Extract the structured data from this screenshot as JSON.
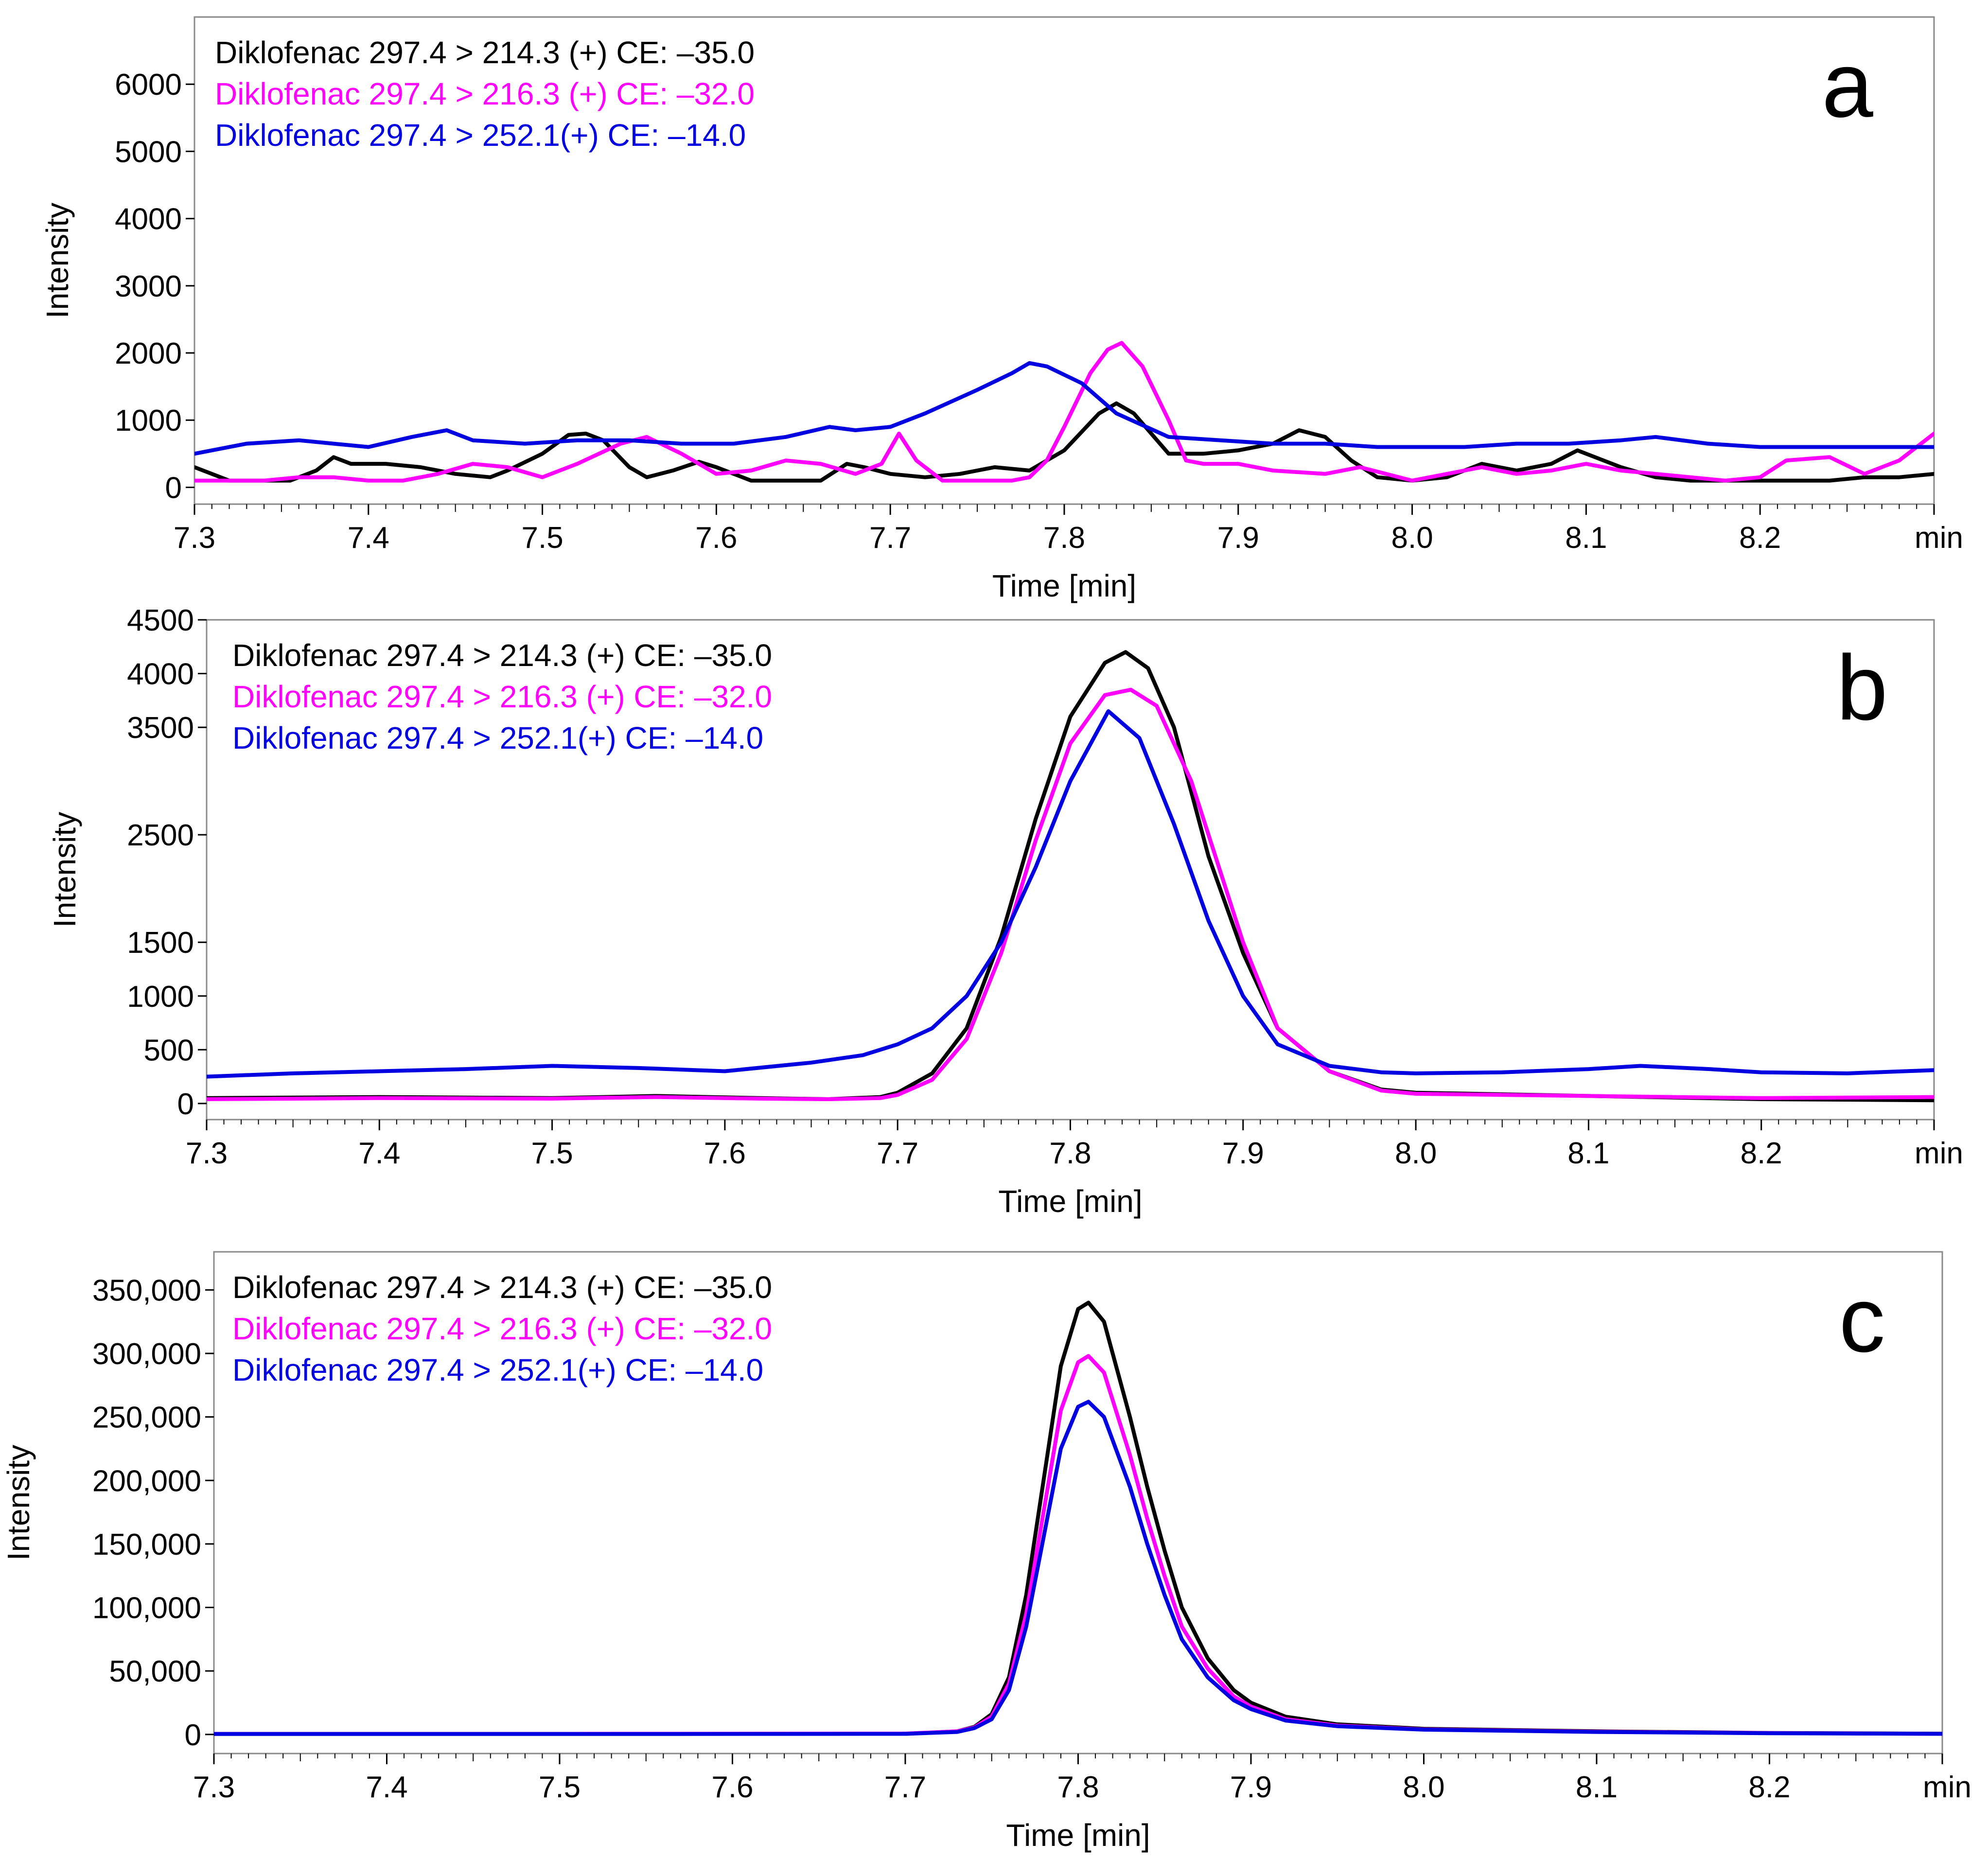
{
  "figure": {
    "background": "#ffffff"
  },
  "series_colors": {
    "black": "#000000",
    "magenta": "#ff00ff",
    "blue": "#0000e0"
  },
  "chart_data": [
    {
      "panel_label": "a",
      "type": "line",
      "xlabel": "Time [min]",
      "ylabel": "Intensity",
      "x_unit_label": "min",
      "xlim": [
        7.3,
        8.3
      ],
      "ylim": [
        -250,
        7000
      ],
      "xticks": [
        7.3,
        7.4,
        7.5,
        7.6,
        7.7,
        7.8,
        7.9,
        8.0,
        8.1,
        8.2
      ],
      "xtick_labels": [
        "7.3",
        "7.4",
        "7.5",
        "7.6",
        "7.7",
        "7.8",
        "7.9",
        "8.0",
        "8.1",
        "8.2"
      ],
      "yticks": [
        0,
        1000,
        2000,
        3000,
        4000,
        5000,
        6000
      ],
      "ytick_labels": [
        "0",
        "1000",
        "2000",
        "3000",
        "4000",
        "5000",
        "6000"
      ],
      "legend": [
        {
          "text": "Diklofenac 297.4 > 214.3 (+) CE: –35.0",
          "color": "#000000"
        },
        {
          "text": "Diklofenac 297.4 > 216.3 (+) CE: –32.0",
          "color": "#ff00ff"
        },
        {
          "text": "Diklofenac 297.4 > 252.1(+) CE: –14.0",
          "color": "#0000e0"
        }
      ],
      "series": [
        {
          "name": "Diklofenac 297.4 > 214.3 (+) CE: –35.0",
          "color": "#000000",
          "x": [
            7.3,
            7.32,
            7.34,
            7.355,
            7.37,
            7.38,
            7.39,
            7.41,
            7.43,
            7.45,
            7.47,
            7.48,
            7.5,
            7.515,
            7.525,
            7.535,
            7.55,
            7.56,
            7.575,
            7.59,
            7.6,
            7.62,
            7.64,
            7.66,
            7.675,
            7.685,
            7.7,
            7.72,
            7.74,
            7.76,
            7.78,
            7.8,
            7.82,
            7.83,
            7.84,
            7.86,
            7.88,
            7.9,
            7.92,
            7.935,
            7.95,
            7.965,
            7.98,
            8.0,
            8.02,
            8.04,
            8.06,
            8.08,
            8.095,
            8.12,
            8.14,
            8.16,
            8.18,
            8.2,
            8.22,
            8.24,
            8.26,
            8.28,
            8.3
          ],
          "y": [
            300,
            100,
            100,
            100,
            250,
            450,
            350,
            350,
            300,
            200,
            150,
            250,
            500,
            780,
            800,
            700,
            300,
            150,
            250,
            380,
            300,
            100,
            100,
            100,
            350,
            300,
            200,
            150,
            200,
            300,
            250,
            550,
            1100,
            1250,
            1100,
            500,
            500,
            550,
            650,
            850,
            750,
            400,
            150,
            100,
            150,
            350,
            250,
            350,
            550,
            300,
            150,
            100,
            100,
            100,
            100,
            100,
            150,
            150,
            200
          ]
        },
        {
          "name": "Diklofenac 297.4 > 216.3 (+) CE: –32.0",
          "color": "#ff00ff",
          "x": [
            7.3,
            7.32,
            7.34,
            7.36,
            7.38,
            7.4,
            7.42,
            7.44,
            7.46,
            7.48,
            7.5,
            7.52,
            7.545,
            7.56,
            7.58,
            7.6,
            7.62,
            7.64,
            7.66,
            7.68,
            7.695,
            7.705,
            7.715,
            7.73,
            7.75,
            7.77,
            7.78,
            7.79,
            7.8,
            7.815,
            7.825,
            7.833,
            7.845,
            7.86,
            7.87,
            7.88,
            7.9,
            7.92,
            7.95,
            7.97,
            7.985,
            8.0,
            8.02,
            8.04,
            8.06,
            8.08,
            8.1,
            8.12,
            8.14,
            8.16,
            8.18,
            8.2,
            8.215,
            8.24,
            8.26,
            8.28,
            8.3
          ],
          "y": [
            100,
            100,
            100,
            150,
            150,
            100,
            100,
            200,
            350,
            300,
            150,
            350,
            650,
            750,
            500,
            200,
            250,
            400,
            350,
            200,
            350,
            800,
            400,
            100,
            100,
            100,
            150,
            400,
            900,
            1700,
            2050,
            2150,
            1800,
            1000,
            400,
            350,
            350,
            250,
            200,
            300,
            200,
            100,
            200,
            300,
            200,
            250,
            350,
            250,
            200,
            150,
            100,
            150,
            400,
            450,
            200,
            400,
            800
          ]
        },
        {
          "name": "Diklofenac 297.4 > 252.1(+) CE: –14.0",
          "color": "#0000e0",
          "x": [
            7.3,
            7.33,
            7.36,
            7.38,
            7.4,
            7.425,
            7.445,
            7.46,
            7.49,
            7.52,
            7.55,
            7.58,
            7.61,
            7.64,
            7.665,
            7.68,
            7.7,
            7.72,
            7.75,
            7.77,
            7.78,
            7.79,
            7.81,
            7.83,
            7.86,
            7.89,
            7.92,
            7.95,
            7.98,
            8.0,
            8.03,
            8.06,
            8.09,
            8.12,
            8.14,
            8.17,
            8.2,
            8.23,
            8.26,
            8.3
          ],
          "y": [
            500,
            650,
            700,
            650,
            600,
            750,
            850,
            700,
            650,
            700,
            700,
            650,
            650,
            750,
            900,
            850,
            900,
            1100,
            1450,
            1700,
            1850,
            1800,
            1550,
            1100,
            750,
            700,
            650,
            650,
            600,
            600,
            600,
            650,
            650,
            700,
            750,
            650,
            600,
            600,
            600,
            600
          ]
        }
      ]
    },
    {
      "panel_label": "b",
      "type": "line",
      "xlabel": "Time [min]",
      "ylabel": "Intensity",
      "x_unit_label": "min",
      "xlim": [
        7.3,
        8.3
      ],
      "ylim": [
        -150,
        4500
      ],
      "xticks": [
        7.3,
        7.4,
        7.5,
        7.6,
        7.7,
        7.8,
        7.9,
        8.0,
        8.1,
        8.2
      ],
      "xtick_labels": [
        "7.3",
        "7.4",
        "7.5",
        "7.6",
        "7.7",
        "7.8",
        "7.9",
        "8.0",
        "8.1",
        "8.2"
      ],
      "yticks": [
        0,
        500,
        1000,
        1500,
        2500,
        3500,
        4000,
        4500
      ],
      "ytick_labels": [
        "0",
        "500",
        "1000",
        "1500",
        "2500",
        "3500",
        "4000",
        "4500"
      ],
      "legend": [
        {
          "text": "Diklofenac 297.4 > 214.3 (+) CE: –35.0",
          "color": "#000000"
        },
        {
          "text": "Diklofenac 297.4 > 216.3 (+) CE: –32.0",
          "color": "#ff00ff"
        },
        {
          "text": "Diklofenac 297.4 > 252.1(+) CE: –14.0",
          "color": "#0000e0"
        }
      ],
      "series": [
        {
          "name": "Diklofenac 297.4 > 214.3 (+) CE: –35.0",
          "color": "#000000",
          "x": [
            7.3,
            7.4,
            7.5,
            7.56,
            7.62,
            7.66,
            7.69,
            7.7,
            7.72,
            7.74,
            7.76,
            7.78,
            7.8,
            7.82,
            7.832,
            7.845,
            7.86,
            7.88,
            7.9,
            7.92,
            7.95,
            7.98,
            8.0,
            8.1,
            8.2,
            8.3
          ],
          "y": [
            50,
            60,
            50,
            70,
            50,
            40,
            60,
            100,
            280,
            700,
            1550,
            2650,
            3600,
            4100,
            4200,
            4050,
            3500,
            2300,
            1400,
            700,
            300,
            130,
            100,
            70,
            40,
            30
          ]
        },
        {
          "name": "Diklofenac 297.4 > 216.3 (+) CE: –32.0",
          "color": "#ff00ff",
          "x": [
            7.3,
            7.4,
            7.5,
            7.56,
            7.62,
            7.66,
            7.69,
            7.7,
            7.72,
            7.74,
            7.76,
            7.78,
            7.8,
            7.82,
            7.835,
            7.85,
            7.87,
            7.9,
            7.92,
            7.95,
            7.98,
            8.0,
            8.1,
            8.2,
            8.3
          ],
          "y": [
            40,
            50,
            45,
            60,
            45,
            40,
            50,
            80,
            220,
            600,
            1400,
            2450,
            3350,
            3800,
            3850,
            3700,
            3000,
            1500,
            700,
            300,
            120,
            90,
            70,
            50,
            60
          ]
        },
        {
          "name": "Diklofenac 297.4 > 252.1(+) CE: –14.0",
          "color": "#0000e0",
          "x": [
            7.3,
            7.35,
            7.4,
            7.45,
            7.5,
            7.55,
            7.6,
            7.65,
            7.68,
            7.7,
            7.72,
            7.74,
            7.76,
            7.78,
            7.8,
            7.822,
            7.84,
            7.86,
            7.88,
            7.9,
            7.92,
            7.95,
            7.98,
            8.0,
            8.05,
            8.1,
            8.13,
            8.17,
            8.2,
            8.25,
            8.3
          ],
          "y": [
            250,
            280,
            300,
            320,
            350,
            330,
            300,
            380,
            450,
            550,
            700,
            1000,
            1500,
            2200,
            3000,
            3650,
            3400,
            2600,
            1700,
            1000,
            550,
            350,
            290,
            280,
            290,
            320,
            350,
            320,
            290,
            280,
            310
          ]
        }
      ]
    },
    {
      "panel_label": "c",
      "type": "line",
      "xlabel": "Time [min]",
      "ylabel": "Intensity",
      "x_unit_label": "min",
      "xlim": [
        7.3,
        8.3
      ],
      "ylim": [
        -15000,
        380000
      ],
      "xticks": [
        7.3,
        7.4,
        7.5,
        7.6,
        7.7,
        7.8,
        7.9,
        8.0,
        8.1,
        8.2
      ],
      "xtick_labels": [
        "7.3",
        "7.4",
        "7.5",
        "7.6",
        "7.7",
        "7.8",
        "7.9",
        "8.0",
        "8.1",
        "8.2"
      ],
      "yticks": [
        0,
        50000,
        100000,
        150000,
        200000,
        250000,
        300000,
        350000
      ],
      "ytick_labels": [
        "0",
        "50,000",
        "100,000",
        "150,000",
        "200,000",
        "250,000",
        "300,000",
        "350,000"
      ],
      "legend": [
        {
          "text": "Diklofenac 297.4 > 214.3 (+) CE: –35.0",
          "color": "#000000"
        },
        {
          "text": "Diklofenac 297.4 > 216.3 (+) CE: –32.0",
          "color": "#ff00ff"
        },
        {
          "text": "Diklofenac 297.4 > 252.1(+) CE: –14.0",
          "color": "#0000e0"
        }
      ],
      "series": [
        {
          "name": "Diklofenac 297.4 > 214.3 (+) CE: –35.0",
          "color": "#000000",
          "x": [
            7.3,
            7.5,
            7.7,
            7.73,
            7.74,
            7.75,
            7.76,
            7.77,
            7.78,
            7.79,
            7.8,
            7.806,
            7.815,
            7.83,
            7.84,
            7.85,
            7.86,
            7.875,
            7.89,
            7.9,
            7.92,
            7.95,
            8.0,
            8.1,
            8.2,
            8.3
          ],
          "y": [
            500,
            500,
            500,
            2500,
            6000,
            16000,
            45000,
            110000,
            200000,
            290000,
            335000,
            340000,
            325000,
            250000,
            195000,
            145000,
            100000,
            60000,
            35000,
            25000,
            14000,
            8000,
            4500,
            2500,
            1200,
            600
          ]
        },
        {
          "name": "Diklofenac 297.4 > 216.3 (+) CE: –32.0",
          "color": "#ff00ff",
          "x": [
            7.3,
            7.5,
            7.7,
            7.73,
            7.74,
            7.75,
            7.76,
            7.77,
            7.78,
            7.79,
            7.8,
            7.806,
            7.815,
            7.83,
            7.84,
            7.85,
            7.86,
            7.875,
            7.89,
            7.9,
            7.92,
            7.95,
            8.0,
            8.1,
            8.2,
            8.3
          ],
          "y": [
            500,
            500,
            700,
            2500,
            5500,
            14000,
            40000,
            95000,
            175000,
            255000,
            293000,
            298000,
            285000,
            220000,
            170000,
            125000,
            85000,
            52000,
            30000,
            22000,
            12000,
            7000,
            4000,
            2200,
            1100,
            500
          ]
        },
        {
          "name": "Diklofenac 297.4 > 252.1(+) CE: –14.0",
          "color": "#0000e0",
          "x": [
            7.3,
            7.5,
            7.7,
            7.73,
            7.74,
            7.75,
            7.76,
            7.77,
            7.78,
            7.79,
            7.8,
            7.806,
            7.815,
            7.83,
            7.84,
            7.85,
            7.86,
            7.875,
            7.89,
            7.9,
            7.92,
            7.95,
            8.0,
            8.1,
            8.2,
            8.3
          ],
          "y": [
            400,
            400,
            500,
            2000,
            5000,
            12000,
            35000,
            85000,
            155000,
            225000,
            258000,
            262000,
            250000,
            195000,
            150000,
            110000,
            75000,
            45000,
            27000,
            20000,
            11000,
            6500,
            3800,
            2000,
            1000,
            500
          ]
        }
      ]
    }
  ]
}
